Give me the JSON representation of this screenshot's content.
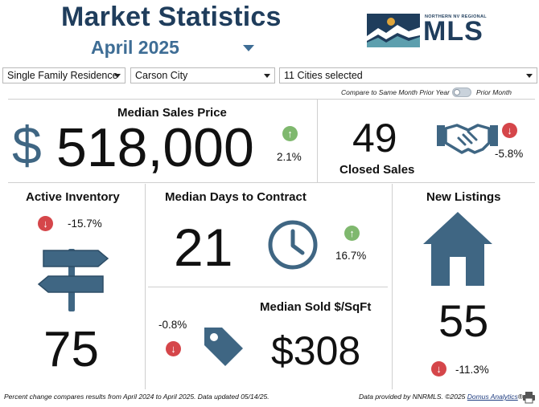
{
  "header": {
    "title": "Market Statistics",
    "month": "April 2025",
    "logo_small_text": "NORTHERN NV REGIONAL",
    "logo_text": "MLS"
  },
  "filters": {
    "property_type": "Single Family Residence",
    "city": "Carson City",
    "cities_selected": "11 Cities selected"
  },
  "compare": {
    "left_label": "Compare to Same Month Prior Year",
    "right_label": "Prior Month",
    "state": "off"
  },
  "stats": {
    "median_sales_price": {
      "label": "Median Sales Price",
      "currency": "$",
      "value": "518,000",
      "change": "2.1%",
      "direction": "up"
    },
    "closed_sales": {
      "label": "Closed Sales",
      "value": "49",
      "change": "-5.8%",
      "direction": "down"
    },
    "active_inventory": {
      "label": "Active Inventory",
      "value": "75",
      "change": "-15.7%",
      "direction": "down"
    },
    "median_days_to_contract": {
      "label": "Median Days to Contract",
      "value": "21",
      "change": "16.7%",
      "direction": "up"
    },
    "median_sold_per_sqft": {
      "label": "Median Sold $/SqFt",
      "value": "$308",
      "change": "-0.8%",
      "direction": "down"
    },
    "new_listings": {
      "label": "New Listings",
      "value": "55",
      "change": "-11.3%",
      "direction": "down"
    }
  },
  "icons": {
    "up": "↑",
    "down": "↓",
    "dollar": "dollar-icon",
    "handshake": "handshake-icon",
    "signpost": "signpost-icon",
    "clock": "clock-icon",
    "tag": "price-tag-icon",
    "house": "house-icon",
    "print": "print-icon"
  },
  "colors": {
    "title": "#1f3d5c",
    "month": "#3e6d95",
    "icon": "#3f6683",
    "up": "#7fb86e",
    "down": "#d5464a"
  },
  "footer": {
    "note": "Percent change compares results from April 2024 to April 2025.  Data updated 05/14/25.",
    "provided_prefix": "Data provided by NNRMLS. ©2025 ",
    "provided_link": "Domus Analytics",
    "provided_suffix": "®"
  }
}
